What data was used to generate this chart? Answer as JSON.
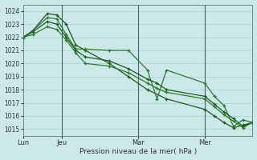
{
  "bg_color": "#cce8e8",
  "grid_color": "#aad0d0",
  "line_color_dark": "#1a5c1a",
  "line_color_med": "#2d7a2d",
  "xlabel": "Pression niveau de la mer( hPa )",
  "ylim": [
    1014.5,
    1024.5
  ],
  "yticks": [
    1015,
    1016,
    1017,
    1018,
    1019,
    1020,
    1021,
    1022,
    1023,
    1024
  ],
  "xlim": [
    0,
    48
  ],
  "xtick_labels": [
    "Lun",
    "Jeu",
    "Mar",
    "Mer"
  ],
  "xtick_positions": [
    0,
    8,
    24,
    38
  ],
  "vline_positions": [
    8,
    24,
    38
  ],
  "s1x": [
    0,
    2,
    5,
    7,
    9,
    11,
    13,
    18,
    22,
    26,
    30,
    38,
    40,
    42,
    44,
    46,
    48
  ],
  "s1y": [
    1022.0,
    1022.5,
    1023.8,
    1023.7,
    1023.0,
    1021.4,
    1021.0,
    1020.0,
    1019.0,
    1018.0,
    1017.3,
    1016.5,
    1016.0,
    1015.5,
    1015.1,
    1015.3,
    1015.5
  ],
  "s2x": [
    0,
    2,
    5,
    7,
    9,
    11,
    13,
    18,
    22,
    26,
    28,
    30,
    38,
    40,
    42,
    44,
    46,
    48
  ],
  "s2y": [
    1022.0,
    1022.5,
    1023.5,
    1023.4,
    1022.2,
    1021.1,
    1021.1,
    1021.0,
    1021.0,
    1019.5,
    1017.3,
    1019.5,
    1018.5,
    1017.5,
    1016.8,
    1015.2,
    1015.7,
    1015.5
  ],
  "s3x": [
    0,
    2,
    5,
    7,
    9,
    11,
    13,
    18,
    22,
    26,
    28,
    30,
    38,
    40,
    42,
    44,
    46,
    48
  ],
  "s3y": [
    1022.0,
    1022.4,
    1023.2,
    1023.0,
    1022.0,
    1021.0,
    1020.5,
    1020.2,
    1019.6,
    1018.8,
    1018.5,
    1018.0,
    1017.5,
    1016.9,
    1016.3,
    1015.8,
    1015.2,
    1015.5
  ],
  "s4x": [
    0,
    2,
    5,
    7,
    9,
    11,
    13,
    18,
    22,
    26,
    28,
    30,
    38,
    40,
    42,
    44,
    46,
    48
  ],
  "s4y": [
    1022.0,
    1022.2,
    1022.8,
    1022.6,
    1021.8,
    1020.8,
    1020.0,
    1019.8,
    1019.3,
    1018.5,
    1018.1,
    1017.8,
    1017.3,
    1016.7,
    1016.1,
    1015.6,
    1015.1,
    1015.5
  ]
}
